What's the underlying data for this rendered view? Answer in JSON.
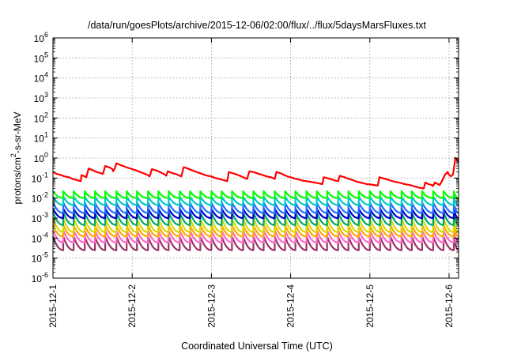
{
  "chart_data": {
    "type": "line",
    "title": "/data/run/goesPlots/archive/2015-12-06/02:00/flux/../flux/5daysMarsFluxes.txt",
    "xlabel": "Coordinated Universal Time (UTC)",
    "ylabel": {
      "prefix": "protons/cm",
      "sup": "2",
      "suffix": "-s-sr-MeV"
    },
    "log_y": true,
    "grid": true,
    "legend": "none",
    "xlim": [
      0,
      5.12
    ],
    "ylim": [
      1e-06,
      1000000.0
    ],
    "x_ticks": [
      {
        "pos": 0,
        "label": "2015-12-1"
      },
      {
        "pos": 1,
        "label": "2015-12-2"
      },
      {
        "pos": 2,
        "label": "2015-12-3"
      },
      {
        "pos": 3,
        "label": "2015-12-4"
      },
      {
        "pos": 4,
        "label": "2015-12-5"
      },
      {
        "pos": 5,
        "label": "2015-12-6"
      }
    ],
    "y_ticks": [
      {
        "exp": -6,
        "label": "10",
        "sup": "-6"
      },
      {
        "exp": -5,
        "label": "10",
        "sup": "-5"
      },
      {
        "exp": -4,
        "label": "10",
        "sup": "-4"
      },
      {
        "exp": -3,
        "label": "10",
        "sup": "-3"
      },
      {
        "exp": -2,
        "label": "10",
        "sup": "-2"
      },
      {
        "exp": -1,
        "label": "10",
        "sup": "-1"
      },
      {
        "exp": 0,
        "label": "10",
        "sup": "0"
      },
      {
        "exp": 1,
        "label": "10",
        "sup": "1"
      },
      {
        "exp": 2,
        "label": "10",
        "sup": "2"
      },
      {
        "exp": 3,
        "label": "10",
        "sup": "3"
      },
      {
        "exp": 4,
        "label": "10",
        "sup": "4"
      },
      {
        "exp": 5,
        "label": "10",
        "sup": "5"
      },
      {
        "exp": 6,
        "label": "10",
        "sup": "6"
      }
    ],
    "main_series": {
      "color": "#ff0000",
      "points": [
        [
          0.0,
          0.2
        ],
        [
          0.05,
          0.16
        ],
        [
          0.1,
          0.14
        ],
        [
          0.15,
          0.12
        ],
        [
          0.2,
          0.11
        ],
        [
          0.25,
          0.09
        ],
        [
          0.3,
          0.08
        ],
        [
          0.35,
          0.07
        ],
        [
          0.36,
          0.14
        ],
        [
          0.4,
          0.12
        ],
        [
          0.42,
          0.11
        ],
        [
          0.45,
          0.3
        ],
        [
          0.5,
          0.25
        ],
        [
          0.55,
          0.2
        ],
        [
          0.6,
          0.18
        ],
        [
          0.63,
          0.16
        ],
        [
          0.66,
          0.4
        ],
        [
          0.72,
          0.33
        ],
        [
          0.75,
          0.28
        ],
        [
          0.76,
          0.22
        ],
        [
          0.78,
          0.3
        ],
        [
          0.8,
          0.55
        ],
        [
          0.85,
          0.45
        ],
        [
          0.9,
          0.38
        ],
        [
          0.95,
          0.32
        ],
        [
          1.0,
          0.28
        ],
        [
          1.05,
          0.24
        ],
        [
          1.1,
          0.2
        ],
        [
          1.15,
          0.17
        ],
        [
          1.2,
          0.14
        ],
        [
          1.22,
          0.12
        ],
        [
          1.25,
          0.28
        ],
        [
          1.3,
          0.24
        ],
        [
          1.35,
          0.2
        ],
        [
          1.4,
          0.16
        ],
        [
          1.43,
          0.13
        ],
        [
          1.45,
          0.22
        ],
        [
          1.5,
          0.18
        ],
        [
          1.55,
          0.16
        ],
        [
          1.6,
          0.13
        ],
        [
          1.62,
          0.12
        ],
        [
          1.65,
          0.35
        ],
        [
          1.7,
          0.3
        ],
        [
          1.75,
          0.25
        ],
        [
          1.8,
          0.21
        ],
        [
          1.85,
          0.18
        ],
        [
          1.9,
          0.15
        ],
        [
          1.95,
          0.13
        ],
        [
          2.0,
          0.12
        ],
        [
          2.05,
          0.1
        ],
        [
          2.1,
          0.09
        ],
        [
          2.15,
          0.08
        ],
        [
          2.2,
          0.07
        ],
        [
          2.22,
          0.2
        ],
        [
          2.28,
          0.17
        ],
        [
          2.32,
          0.15
        ],
        [
          2.38,
          0.12
        ],
        [
          2.42,
          0.1
        ],
        [
          2.45,
          0.09
        ],
        [
          2.48,
          0.22
        ],
        [
          2.55,
          0.19
        ],
        [
          2.6,
          0.16
        ],
        [
          2.65,
          0.14
        ],
        [
          2.7,
          0.12
        ],
        [
          2.75,
          0.11
        ],
        [
          2.8,
          0.09
        ],
        [
          2.82,
          0.2
        ],
        [
          2.88,
          0.17
        ],
        [
          2.92,
          0.14
        ],
        [
          2.96,
          0.12
        ],
        [
          3.0,
          0.11
        ],
        [
          3.05,
          0.095
        ],
        [
          3.1,
          0.085
        ],
        [
          3.15,
          0.075
        ],
        [
          3.2,
          0.07
        ],
        [
          3.25,
          0.065
        ],
        [
          3.3,
          0.06
        ],
        [
          3.35,
          0.055
        ],
        [
          3.4,
          0.05
        ],
        [
          3.42,
          0.11
        ],
        [
          3.48,
          0.095
        ],
        [
          3.52,
          0.085
        ],
        [
          3.56,
          0.075
        ],
        [
          3.6,
          0.07
        ],
        [
          3.62,
          0.13
        ],
        [
          3.68,
          0.11
        ],
        [
          3.72,
          0.095
        ],
        [
          3.76,
          0.085
        ],
        [
          3.8,
          0.075
        ],
        [
          3.84,
          0.065
        ],
        [
          3.88,
          0.06
        ],
        [
          3.92,
          0.055
        ],
        [
          3.96,
          0.05
        ],
        [
          4.0,
          0.048
        ],
        [
          4.05,
          0.045
        ],
        [
          4.1,
          0.042
        ],
        [
          4.12,
          0.11
        ],
        [
          4.18,
          0.095
        ],
        [
          4.22,
          0.085
        ],
        [
          4.26,
          0.075
        ],
        [
          4.3,
          0.068
        ],
        [
          4.34,
          0.062
        ],
        [
          4.38,
          0.058
        ],
        [
          4.42,
          0.052
        ],
        [
          4.46,
          0.048
        ],
        [
          4.5,
          0.045
        ],
        [
          4.55,
          0.04
        ],
        [
          4.6,
          0.035
        ],
        [
          4.65,
          0.032
        ],
        [
          4.68,
          0.03
        ],
        [
          4.7,
          0.06
        ],
        [
          4.74,
          0.05
        ],
        [
          4.78,
          0.045
        ],
        [
          4.8,
          0.04
        ],
        [
          4.82,
          0.06
        ],
        [
          4.86,
          0.05
        ],
        [
          4.88,
          0.045
        ],
        [
          4.9,
          0.06
        ],
        [
          4.95,
          0.15
        ],
        [
          4.98,
          0.2
        ],
        [
          5.0,
          0.15
        ],
        [
          5.02,
          0.12
        ],
        [
          5.05,
          0.15
        ],
        [
          5.08,
          1.0
        ],
        [
          5.1,
          0.8
        ],
        [
          5.12,
          0.6
        ],
        [
          5.18,
          0.45
        ],
        [
          5.25,
          0.35
        ],
        [
          5.3,
          0.3
        ],
        [
          5.4,
          0.25
        ],
        [
          5.5,
          0.2
        ]
      ]
    },
    "decay_series": [
      {
        "name": "",
        "color": "#00ff00",
        "peak": 0.022,
        "trough": 0.01
      },
      {
        "name": "",
        "color": "#00c8c8",
        "peak": 0.012,
        "trough": 0.0045
      },
      {
        "name": "",
        "color": "#1e6fff",
        "peak": 0.006,
        "trough": 0.0018
      },
      {
        "name": "",
        "color": "#0000cc",
        "peak": 0.003,
        "trough": 0.001
      },
      {
        "name": "",
        "color": "#00a86b",
        "peak": 0.002,
        "trough": 0.00045
      },
      {
        "name": "",
        "color": "#d8d800",
        "peak": 0.001,
        "trough": 0.0002
      },
      {
        "name": "",
        "color": "#ffa500",
        "peak": 0.00045,
        "trough": 0.00012
      },
      {
        "name": "",
        "color": "#ff66cc",
        "peak": 0.00025,
        "trough": 6e-05
      },
      {
        "name": "",
        "color": "#993366",
        "peak": 0.00012,
        "trough": 2.5e-05
      }
    ],
    "decay_event_times": [
      0.0,
      0.13,
      0.26,
      0.4,
      0.53,
      0.66,
      0.8,
      0.93,
      1.06,
      1.2,
      1.33,
      1.46,
      1.6,
      1.73,
      1.86,
      2.0,
      2.13,
      2.26,
      2.4,
      2.53,
      2.66,
      2.8,
      2.93,
      3.06,
      3.2,
      3.33,
      3.46,
      3.6,
      3.73,
      3.86,
      4.0,
      4.13,
      4.26,
      4.4,
      4.53,
      4.66,
      4.8,
      4.93,
      5.06
    ]
  }
}
